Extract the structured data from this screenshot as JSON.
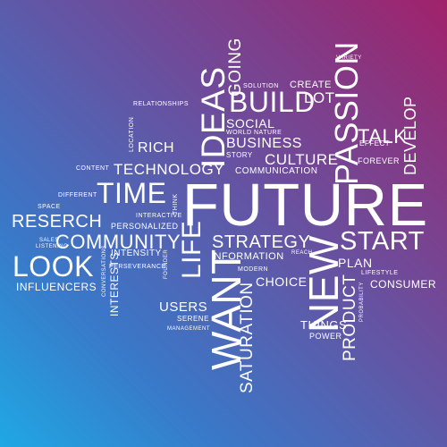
{
  "words": {
    "future": "FUTURE",
    "time": "TIME",
    "look": "LOOK",
    "ideas": "IDEAS",
    "build": "BUILD",
    "new": "NEW",
    "want": "WANT",
    "life": "LIFE",
    "passion": "PASSION",
    "start": "START",
    "community": "COMMUNITY",
    "research": "RESERCH",
    "strategy": "STRATEGY",
    "technology": "TECHNOLOGY",
    "business": "BUSINESS",
    "culture": "CULTURE",
    "talk": "TALK",
    "develop": "DEVELOP",
    "product": "PRODUCT",
    "saturation": "SATURATION",
    "going": "GOING",
    "rich": "RICH",
    "social": "SOCIAL",
    "lot": "LOT",
    "create": "CREATE",
    "solution": "SOLUTION",
    "variety": "VARIETY",
    "relationships": "RELATIONSHIPS",
    "location": "LOCATION",
    "world_nature": "WORLD NATURE",
    "story": "STORY",
    "effect": "EFFECT",
    "forever": "FOREVER",
    "communication": "COMMUNICATION",
    "content": "CONTENT",
    "different": "DIFFERENT",
    "space": "SPACE",
    "think": "THINK",
    "interactive": "INTERACTIVE",
    "personalized": "PERSONALIZED",
    "sales": "SALES",
    "listening": "LISTENING",
    "intensity": "INTENSITY",
    "information": "INFORMATION",
    "reach": "REACH",
    "plan": "PLAN",
    "conversations": "CONVERSATIONS",
    "perseverance": "PERSEVERANCE",
    "founder": "FOUNDER",
    "modern": "MODERN",
    "lifestyle": "LIFESTYLE",
    "influencers": "INFLUENCERS",
    "interests": "INTERESTS",
    "choice": "CHOICE",
    "consumer": "CONSUMER",
    "probability": "PROBABILITY",
    "users": "USERS",
    "serene": "SERENE",
    "management": "MANAGEMENT",
    "things": "THINGS",
    "power": "POWER"
  }
}
